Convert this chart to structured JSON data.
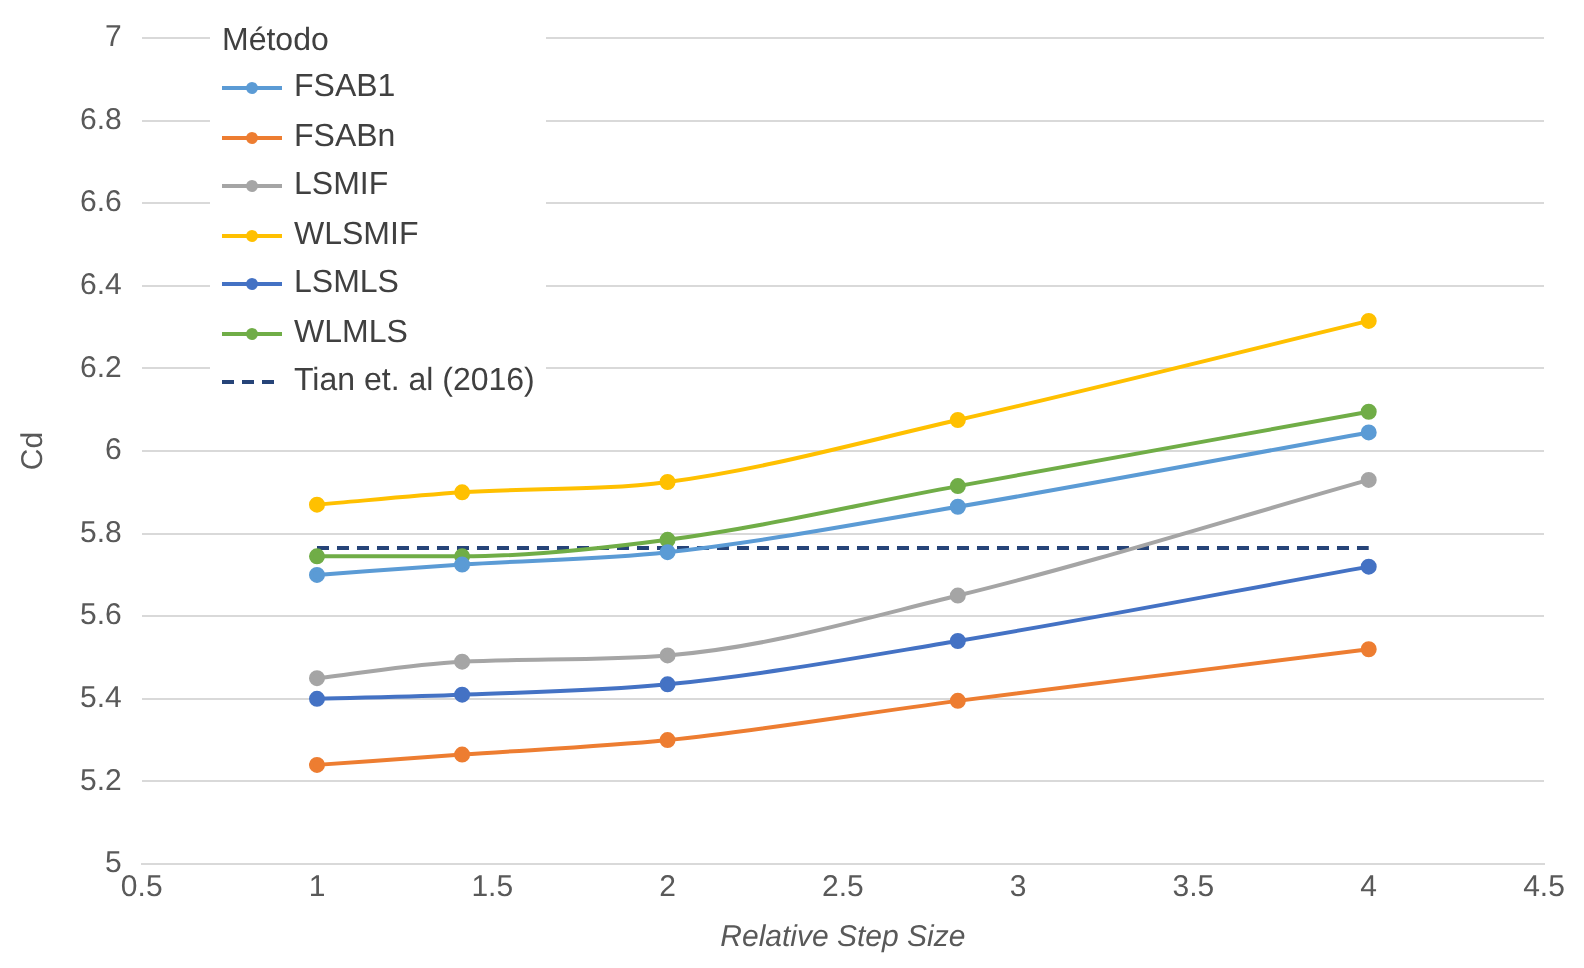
{
  "chart_data": {
    "type": "line",
    "xlabel": "Relative Step Size",
    "ylabel": "Cd",
    "legend_title": "Método",
    "legend": "top left",
    "grid": "y",
    "marker": "circle",
    "x": [
      1,
      1.414,
      2,
      2.828,
      4
    ],
    "xlim": [
      0.5,
      4.5
    ],
    "xticks": [
      0.5,
      1,
      1.5,
      2,
      2.5,
      3,
      3.5,
      4,
      4.5
    ],
    "ylim": [
      5,
      7
    ],
    "yticks": [
      5,
      5.2,
      5.4,
      5.6,
      5.8,
      6,
      6.2,
      6.4,
      6.6,
      6.8,
      7
    ],
    "series": [
      {
        "name": "FSAB1",
        "color": "#5b9bd5",
        "values": [
          5.7,
          5.725,
          5.755,
          5.865,
          6.045
        ]
      },
      {
        "name": "FSABn",
        "color": "#ed7d31",
        "values": [
          5.24,
          5.265,
          5.3,
          5.395,
          5.52
        ]
      },
      {
        "name": "LSMIF",
        "color": "#a5a5a5",
        "values": [
          5.45,
          5.49,
          5.505,
          5.65,
          5.93
        ]
      },
      {
        "name": "WLSMIF",
        "color": "#ffc000",
        "values": [
          5.87,
          5.9,
          5.925,
          6.075,
          6.315
        ]
      },
      {
        "name": "LSMLS",
        "color": "#4472c4",
        "values": [
          5.4,
          5.41,
          5.435,
          5.54,
          5.72
        ]
      },
      {
        "name": "WLMLS",
        "color": "#70ad47",
        "values": [
          5.745,
          5.745,
          5.785,
          5.915,
          6.095
        ]
      },
      {
        "name": "Tian et. al (2016)",
        "color": "#264478",
        "x": [
          1,
          4
        ],
        "values": [
          5.765,
          5.765
        ],
        "line_style": "dashed",
        "marker": "none"
      }
    ]
  }
}
